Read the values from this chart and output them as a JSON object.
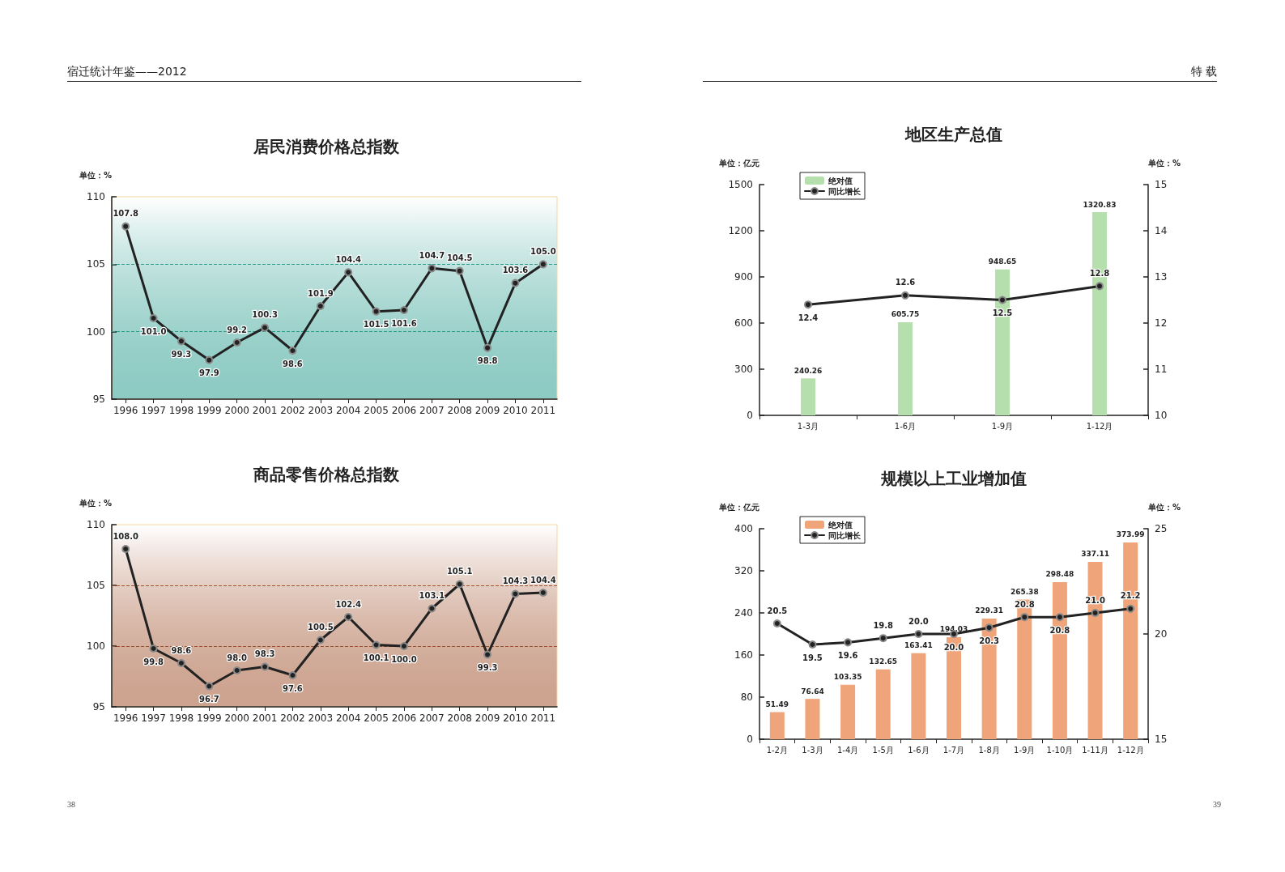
{
  "chart_data": [
    {
      "type": "line",
      "title": "居民消费价格总指数",
      "ylabel": "单位：%",
      "annotations": [
        "宿迁统计年鉴——2012",
        "38"
      ],
      "categories": [
        "1996",
        "1997",
        "1998",
        "1999",
        "2000",
        "2001",
        "2002",
        "2003",
        "2004",
        "2005",
        "2006",
        "2007",
        "2008",
        "2009",
        "2010",
        "2011"
      ],
      "series": [
        {
          "color": "#222222",
          "values": [
            107.8,
            101.0,
            99.3,
            97.9,
            99.2,
            100.3,
            98.6,
            101.9,
            104.4,
            101.5,
            101.6,
            104.7,
            104.5,
            98.8,
            103.6,
            105.0
          ],
          "value_labels": [
            "107.8",
            "101.0",
            "99.3",
            "97.9",
            "99.2",
            "100.3",
            "98.6",
            "101.9",
            "104.4",
            "101.5",
            "101.6",
            "104.7",
            "104.5",
            "98.8",
            "103.6",
            "105.0"
          ]
        }
      ],
      "ylim": [
        95,
        110
      ],
      "yticks": [
        95,
        100,
        105,
        110
      ],
      "grid": false,
      "legend": false,
      "marker": "circle",
      "line_style": "solid",
      "ref_lines": [
        {
          "axis": "y",
          "value": 100,
          "label": null,
          "color": "#2a9d8f",
          "line_style": "dashed"
        },
        {
          "axis": "y",
          "value": 105,
          "label": null,
          "color": "#2a9d8f",
          "line_style": "dashed"
        }
      ]
    },
    {
      "type": "line",
      "title": "商品零售价格总指数",
      "ylabel": "单位：%",
      "categories": [
        "1996",
        "1997",
        "1998",
        "1999",
        "2000",
        "2001",
        "2002",
        "2003",
        "2004",
        "2005",
        "2006",
        "2007",
        "2008",
        "2009",
        "2010",
        "2011"
      ],
      "series": [
        {
          "color": "#222222",
          "values": [
            108.0,
            99.8,
            98.6,
            96.7,
            98.0,
            98.3,
            97.6,
            100.5,
            102.4,
            100.1,
            100.0,
            103.1,
            105.1,
            99.3,
            104.3,
            104.4
          ],
          "value_labels": [
            "108.0",
            "99.8",
            "98.6",
            "96.7",
            "98.0",
            "98.3",
            "97.6",
            "100.5",
            "102.4",
            "100.1",
            "100.0",
            "103.1",
            "105.1",
            "99.3",
            "104.3",
            "104.4"
          ]
        }
      ],
      "ylim": [
        95,
        110
      ],
      "yticks": [
        95,
        100,
        105,
        110
      ],
      "grid": false,
      "legend": false,
      "marker": "circle",
      "line_style": "solid",
      "ref_lines": [
        {
          "axis": "y",
          "value": 100,
          "label": null,
          "color": "#a0522d",
          "line_style": "dashed"
        },
        {
          "axis": "y",
          "value": 105,
          "label": null,
          "color": "#a0522d",
          "line_style": "dashed"
        }
      ]
    },
    {
      "type": "bar",
      "title": "地区生产总值",
      "ylabel": "单位：亿元",
      "y2label": "单位：%",
      "annotations": [
        "特 载",
        "39"
      ],
      "categories": [
        "1-3月",
        "1-6月",
        "1-9月",
        "1-12月"
      ],
      "series": [
        {
          "name": "绝对值",
          "type": "bar",
          "color": "#b5e0ad",
          "values": [
            240.26,
            605.75,
            948.65,
            1320.83
          ]
        },
        {
          "name": "同比增长",
          "type": "line",
          "axis": "y2",
          "color": "#222222",
          "values": [
            12.4,
            12.6,
            12.5,
            12.8
          ]
        }
      ],
      "ylim": [
        0,
        1500
      ],
      "yticks": [
        0,
        300,
        600,
        900,
        1200,
        1500
      ],
      "y2lim": [
        10,
        15
      ],
      "y2ticks": [
        10,
        11,
        12,
        13,
        14,
        15
      ],
      "grid": false,
      "legend": "top left",
      "data_labels": true,
      "marker": "circle",
      "line_style": "solid"
    },
    {
      "type": "bar",
      "title": "规模以上工业增加值",
      "ylabel": "单位：亿元",
      "y2label": "单位：%",
      "categories": [
        "1-2月",
        "1-3月",
        "1-4月",
        "1-5月",
        "1-6月",
        "1-7月",
        "1-8月",
        "1-9月",
        "1-10月",
        "1-11月",
        "1-12月"
      ],
      "series": [
        {
          "name": "绝对值",
          "type": "bar",
          "color": "#f0a47a",
          "values": [
            51.49,
            76.64,
            103.35,
            132.65,
            163.41,
            194.03,
            229.31,
            265.38,
            298.48,
            337.11,
            373.99
          ]
        },
        {
          "name": "同比增长",
          "type": "line",
          "axis": "y2",
          "color": "#222222",
          "values": [
            20.5,
            19.5,
            19.6,
            19.8,
            20.0,
            20.0,
            20.3,
            20.8,
            20.8,
            21.0,
            21.2
          ],
          "value_labels": [
            "20.5",
            "19.5",
            "19.6",
            "19.8",
            "20.0",
            "20.0",
            "20.3",
            "20.8",
            "20.8",
            "21.0",
            "21.2"
          ]
        }
      ],
      "ylim": [
        0,
        400
      ],
      "yticks": [
        0,
        80,
        160,
        240,
        320,
        400
      ],
      "y2lim": [
        15,
        25
      ],
      "y2ticks": [
        15,
        20,
        25
      ],
      "grid": false,
      "legend": "top left",
      "data_labels": true,
      "marker": "circle",
      "line_style": "solid"
    }
  ]
}
